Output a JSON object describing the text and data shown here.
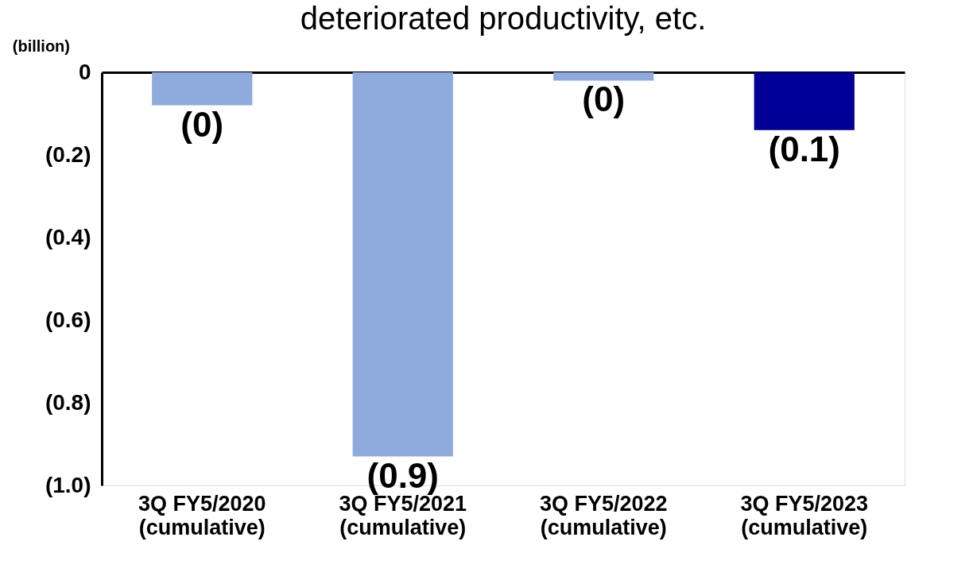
{
  "chart_data": {
    "type": "bar",
    "title": "deteriorated productivity, etc.",
    "ylabel": "(billion)",
    "categories": [
      "3Q FY5/2020\n(cumulative)",
      "3Q FY5/2021\n(cumulative)",
      "3Q FY5/2022\n(cumulative)",
      "3Q FY5/2023\n(cumulative)"
    ],
    "values": [
      -0.08,
      -0.93,
      -0.02,
      -0.14
    ],
    "colors": [
      "#8faadc",
      "#8faadc",
      "#8faadc",
      "#000099"
    ],
    "value_labels": [
      "(0)",
      "(0.9)",
      "(0)",
      "(0.1)"
    ],
    "ylim": [
      -1.0,
      0
    ],
    "yticks": [
      0,
      {
        "value": -0.2,
        "label": "(0.2)"
      },
      {
        "value": -0.4,
        "label": "(0.4)"
      },
      {
        "value": -0.6,
        "label": "(0.6)"
      },
      {
        "value": -0.8,
        "label": "(0.8)"
      },
      {
        "value": -1.0,
        "label": "(1.0)"
      }
    ],
    "grid": false
  }
}
